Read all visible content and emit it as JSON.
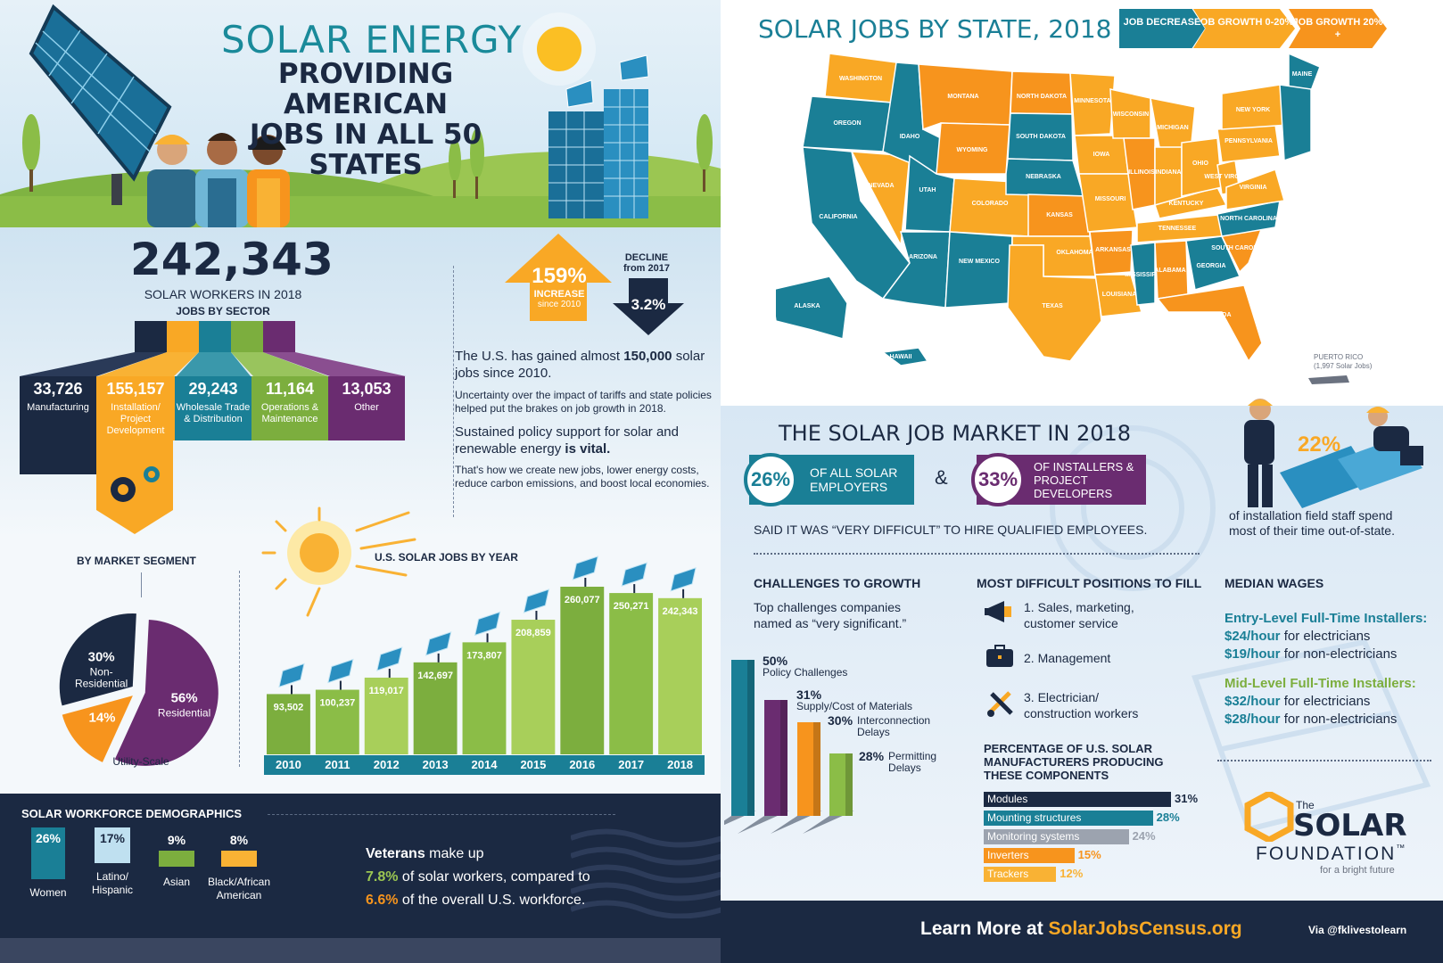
{
  "header": {
    "title_line1": "SOLAR ENERGY",
    "title_line2": "PROVIDING AMERICAN",
    "title_line3": "JOBS IN ALL 50 STATES"
  },
  "workers": {
    "total": "242,343",
    "label": "SOLAR WORKERS IN 2018",
    "sector_heading": "JOBS BY SECTOR"
  },
  "sectors": [
    {
      "value": "33,726",
      "label": "Manufacturing",
      "color": "#1b2942"
    },
    {
      "value": "155,157",
      "label": "Installation/ Project Development",
      "color": "#f9a825"
    },
    {
      "value": "29,243",
      "label": "Wholesale Trade & Distribution",
      "color": "#1a7f96"
    },
    {
      "value": "11,164",
      "label": "Operations & Maintenance",
      "color": "#7cae3e"
    },
    {
      "value": "13,053",
      "label": "Other",
      "color": "#6a2c70"
    }
  ],
  "increase": {
    "value": "159%",
    "label": "INCREASE",
    "sub": "since 2010"
  },
  "decline": {
    "label": "DECLINE",
    "sub": "from 2017",
    "value": "3.2%"
  },
  "narrative": {
    "p1_a": "The U.S. has gained almost",
    "p1_b": "150,000",
    "p1_c": "solar jobs since 2010.",
    "p2": "Uncertainty over the impact of tariffs and state policies helped put the brakes on job growth in 2018.",
    "p3_a": "Sustained policy support for solar and renewable energy",
    "p3_b": "is vital.",
    "p4": "That's how we create new jobs, lower energy costs, reduce carbon emissions, and boost local economies."
  },
  "market_segment": {
    "title": "BY MARKET SEGMENT",
    "slices": [
      {
        "label": "Residential",
        "value": 56,
        "text": "56%",
        "color": "#6a2c70"
      },
      {
        "label": "Utility-Scale",
        "value": 14,
        "text": "14%",
        "color": "#f7941d"
      },
      {
        "label": "Non-Residential",
        "value": 30,
        "text": "30%",
        "color": "#1b2942"
      }
    ]
  },
  "chart_data": {
    "type": "bar",
    "title": "U.S. SOLAR JOBS BY YEAR",
    "categories": [
      "2010",
      "2011",
      "2012",
      "2013",
      "2014",
      "2015",
      "2016",
      "2017",
      "2018"
    ],
    "values": [
      93502,
      100237,
      119017,
      142697,
      173807,
      208859,
      260077,
      250271,
      242343
    ],
    "labels": [
      "93,502",
      "100,237",
      "119,017",
      "142,697",
      "173,807",
      "208,859",
      "260,077",
      "250,271",
      "242,343"
    ],
    "colors": [
      "#7cae3e",
      "#8bbd47",
      "#a8cf5a",
      "#7cae3e",
      "#8bbd47",
      "#a8cf5a",
      "#7cae3e",
      "#8bbd47",
      "#a8cf5a"
    ],
    "ylim": [
      0,
      260077
    ]
  },
  "demographics": {
    "title": "SOLAR WORKFORCE DEMOGRAPHICS",
    "items": [
      {
        "value": "26%",
        "label": "Women",
        "color": "#1a7f96"
      },
      {
        "value": "17%",
        "label": "Latino/ Hispanic",
        "color": "#bfe0f0"
      },
      {
        "value": "9%",
        "label": "Asian",
        "color": "#7cae3e"
      },
      {
        "value": "8%",
        "label": "Black/African American",
        "color": "#f9b234"
      }
    ],
    "vet_a": "Veterans",
    "vet_b": "make up",
    "vet_c": "7.8%",
    "vet_d": "of solar workers, compared to",
    "vet_e": "6.6%",
    "vet_f": "of the overall U.S. workforce."
  },
  "map": {
    "title": "SOLAR JOBS BY STATE, 2018",
    "legend": [
      {
        "label": "JOB DECREASE",
        "color": "#1a7f96"
      },
      {
        "label": "JOB GROWTH 0-20%",
        "color": "#f9a825"
      },
      {
        "label": "JOB GROWTH 20% +",
        "color": "#f7941d"
      }
    ],
    "states": {
      "WASHINGTON": "#f9a825",
      "OREGON": "#1a7f96",
      "CALIFORNIA": "#1a7f96",
      "NEVADA": "#f9a825",
      "IDAHO": "#1a7f96",
      "MONTANA": "#f7941d",
      "WYOMING": "#f7941d",
      "UTAH": "#1a7f96",
      "ARIZONA": "#1a7f96",
      "COLORADO": "#f9a825",
      "NEW MEXICO": "#1a7f96",
      "NORTH DAKOTA": "#f7941d",
      "SOUTH DAKOTA": "#1a7f96",
      "NEBRASKA": "#1a7f96",
      "KANSAS": "#f7941d",
      "OKLAHOMA": "#f9a825",
      "TEXAS": "#f9a825",
      "MINNESOTA": "#f9a825",
      "IOWA": "#f9a825",
      "MISSOURI": "#f9a825",
      "ARKANSAS": "#f7941d",
      "LOUISIANA": "#f9a825",
      "WISCONSIN": "#f9a825",
      "ILLINOIS": "#f7941d",
      "MISSISSIPPI": "#1a7f96",
      "MICHIGAN": "#f9a825",
      "INDIANA": "#f9a825",
      "KENTUCKY": "#f9a825",
      "TENNESSEE": "#f9a825",
      "ALABAMA": "#f7941d",
      "OHIO": "#f9a825",
      "GEORGIA": "#1a7f96",
      "FLORIDA": "#f7941d",
      "SOUTH CAROLINA": "#f7941d",
      "NORTH CAROLINA": "#1a7f96",
      "VIRGINIA": "#f9a825",
      "WEST VIRGINIA": "#f9a825",
      "PENNSYLVANIA": "#f9a825",
      "NEW YORK": "#f9a825",
      "MAINE": "#1a7f96",
      "ALASKA": "#1a7f96",
      "HAWAII": "#1a7f96"
    },
    "puerto_rico": "PUERTO RICO",
    "pr_jobs": "(1,997 Solar Jobs)"
  },
  "market": {
    "title": "THE SOLAR JOB MARKET IN 2018",
    "stat1_value": "26%",
    "stat1_label": "OF ALL SOLAR EMPLOYERS",
    "amp": "&",
    "stat2_value": "33%",
    "stat2_label": "OF INSTALLERS & PROJECT DEVELOPERS",
    "said": "SAID IT WAS “VERY DIFFICULT” TO HIRE QUALIFIED EMPLOYEES.",
    "out_state_value": "22%",
    "out_state_text": "of installation field staff spend most of their time out-of-state."
  },
  "challenges": {
    "title": "CHALLENGES TO GROWTH",
    "subtitle": "Top challenges companies named as “very significant.”",
    "items": [
      {
        "value": "50%",
        "label": "Policy Challenges",
        "color": "#1a7f96"
      },
      {
        "value": "31%",
        "label": "Supply/Cost of Materials",
        "color": "#6a2c70"
      },
      {
        "value": "30%",
        "label": "Interconnection Delays",
        "color": "#f7941d"
      },
      {
        "value": "28%",
        "label": "Permitting Delays",
        "color": "#8bbd47"
      }
    ]
  },
  "positions": {
    "title": "MOST DIFFICULT POSITIONS TO FILL",
    "items": [
      "1. Sales, marketing, customer service",
      "2. Management",
      "3. Electrician/ construction workers"
    ]
  },
  "wages": {
    "title": "MEDIAN WAGES",
    "entry_title": "Entry-Level Full-Time Installers:",
    "entry_1_val": "$24/hour",
    "entry_1_txt": "for electricians",
    "entry_2_val": "$19/hour",
    "entry_2_txt": "for non-electricians",
    "mid_title": "Mid-Level Full-Time Installers:",
    "mid_1_val": "$32/hour",
    "mid_1_txt": "for electricians",
    "mid_2_val": "$28/hour",
    "mid_2_txt": "for non-electricians"
  },
  "components": {
    "title": "PERCENTAGE OF U.S. SOLAR MANUFACTURERS PRODUCING THESE COMPONENTS",
    "items": [
      {
        "label": "Modules",
        "value": 31,
        "text": "31%",
        "color": "#1b2942"
      },
      {
        "label": "Mounting structures",
        "value": 28,
        "text": "28%",
        "color": "#1a7f96"
      },
      {
        "label": "Monitoring systems",
        "value": 24,
        "text": "24%",
        "color": "#9ca3af"
      },
      {
        "label": "Inverters",
        "value": 15,
        "text": "15%",
        "color": "#f7941d"
      },
      {
        "label": "Trackers",
        "value": 12,
        "text": "12%",
        "color": "#f9b234"
      }
    ]
  },
  "logo": {
    "the": "The",
    "solar": "SOLAR",
    "foundation": "FOUNDATION",
    "tm": "™",
    "tagline": "for a bright future"
  },
  "footer": {
    "learn": "Learn More at",
    "url": "SolarJobsCensus.org",
    "via": "Via @fklivestolearn"
  }
}
